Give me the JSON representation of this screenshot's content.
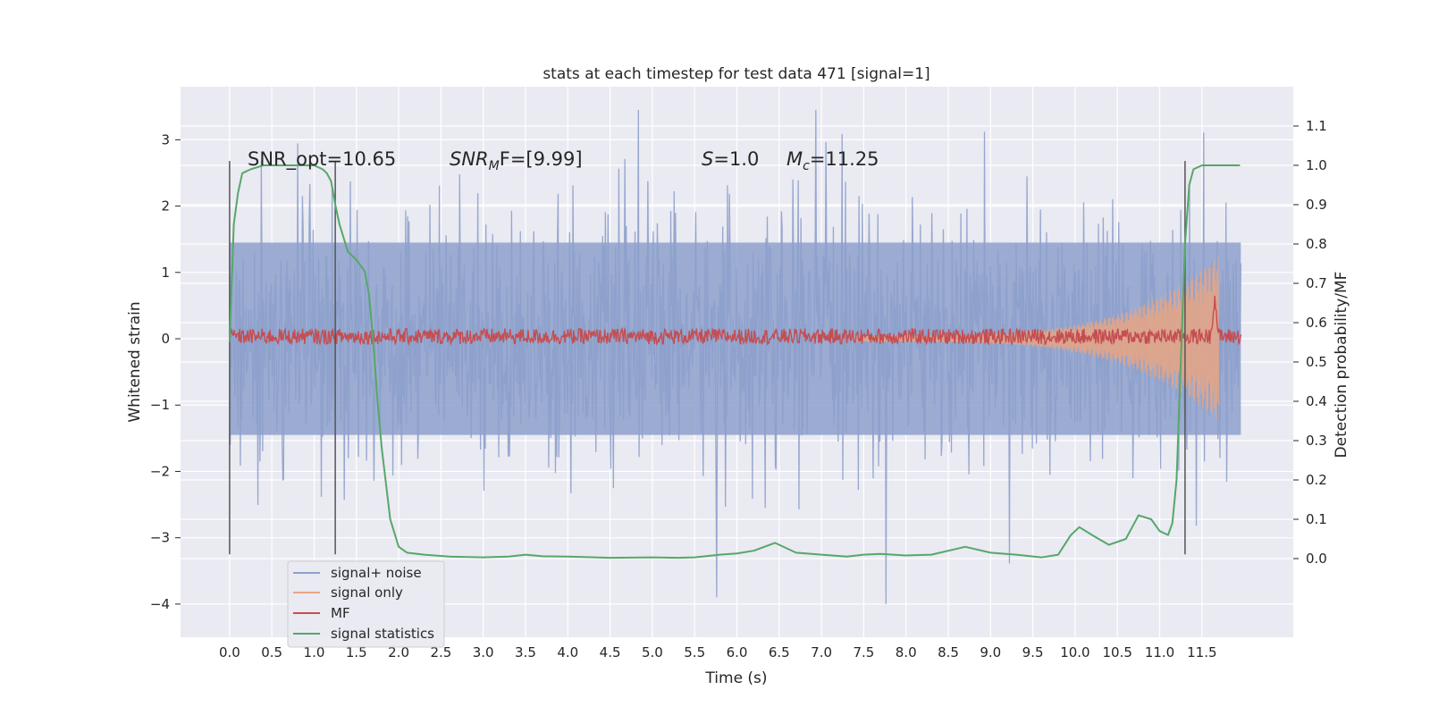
{
  "chart_data": {
    "type": "line",
    "title": "stats at each timestep for test data 471 [signal=1]",
    "xlabel": "Time (s)",
    "ylabel_left": "Whitened strain",
    "ylabel_right": "Detection probability/MF",
    "xlim": [
      -0.58,
      12.58
    ],
    "ylim_left": [
      -4.5,
      3.8
    ],
    "ylim_right": [
      -0.2,
      1.2
    ],
    "x_ticks": [
      "0.0",
      "0.5",
      "1.0",
      "1.5",
      "2.0",
      "2.5",
      "3.0",
      "3.5",
      "4.0",
      "4.5",
      "5.0",
      "5.5",
      "6.0",
      "6.5",
      "7.0",
      "7.5",
      "8.0",
      "8.5",
      "9.0",
      "9.5",
      "10.0",
      "10.5",
      "11.0",
      "11.5"
    ],
    "y_ticks_left": [
      "−4",
      "−3",
      "−2",
      "−1",
      "0",
      "1",
      "2",
      "3"
    ],
    "y_ticks_right": [
      "0.0",
      "0.1",
      "0.2",
      "0.3",
      "0.4",
      "0.5",
      "0.6",
      "0.7",
      "0.8",
      "0.9",
      "1.0",
      "1.1"
    ],
    "annotations": {
      "snr_opt": "SNR_opt=10.65",
      "snr_mf": "SNR",
      "snr_mf_sub": "M",
      "snr_mf_rest": "F=[9.99]",
      "s_label": "S",
      "s_value": "=1.0",
      "mc_label": "M",
      "mc_sub": "c",
      "mc_value": "=11.25"
    },
    "vertical_lines_x": [
      0.0,
      1.25,
      11.3
    ],
    "series": [
      {
        "name": "signal+ noise",
        "color": "#8da0cb",
        "description_range": [
          -3.5,
          3.5
        ]
      },
      {
        "name": "signal only",
        "color": "#e8a582"
      },
      {
        "name": "MF",
        "color": "#c44e52"
      },
      {
        "name": "signal statistics",
        "color": "#55a868",
        "x": [
          0.0,
          0.05,
          0.1,
          0.15,
          0.25,
          0.4,
          0.6,
          0.8,
          1.0,
          1.1,
          1.15,
          1.2,
          1.25,
          1.3,
          1.4,
          1.5,
          1.6,
          1.65,
          1.7,
          1.75,
          1.8,
          1.9,
          2.0,
          2.1,
          2.3,
          2.6,
          3.0,
          3.3,
          3.5,
          3.7,
          4.0,
          4.5,
          5.0,
          5.3,
          5.5,
          5.8,
          6.0,
          6.2,
          6.45,
          6.7,
          7.0,
          7.3,
          7.5,
          7.7,
          8.0,
          8.3,
          8.7,
          9.0,
          9.3,
          9.6,
          9.8,
          9.95,
          10.05,
          10.2,
          10.4,
          10.6,
          10.75,
          10.9,
          11.0,
          11.1,
          11.15,
          11.2,
          11.25,
          11.3,
          11.35,
          11.4,
          11.5,
          11.7,
          11.9,
          11.95
        ],
        "y": [
          0.55,
          0.85,
          0.93,
          0.98,
          0.99,
          1.0,
          1.0,
          1.0,
          1.0,
          0.99,
          0.98,
          0.96,
          0.9,
          0.85,
          0.78,
          0.76,
          0.73,
          0.67,
          0.55,
          0.4,
          0.28,
          0.1,
          0.03,
          0.015,
          0.01,
          0.005,
          0.003,
          0.005,
          0.01,
          0.006,
          0.005,
          0.002,
          0.003,
          0.002,
          0.003,
          0.01,
          0.013,
          0.02,
          0.04,
          0.015,
          0.01,
          0.005,
          0.01,
          0.012,
          0.008,
          0.01,
          0.03,
          0.015,
          0.01,
          0.003,
          0.01,
          0.06,
          0.08,
          0.06,
          0.035,
          0.05,
          0.11,
          0.1,
          0.07,
          0.06,
          0.09,
          0.2,
          0.5,
          0.8,
          0.95,
          0.99,
          1.0,
          1.0,
          1.0,
          1.0
        ]
      }
    ],
    "legend_position": "lower-left",
    "grid": true
  }
}
